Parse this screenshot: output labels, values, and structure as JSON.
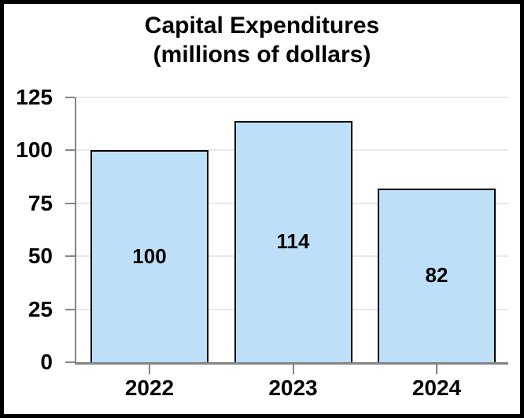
{
  "frame": {
    "background": "#ffffff",
    "border_color": "#000000"
  },
  "chart_data": {
    "type": "bar",
    "title": "Capital Expenditures (millions of dollars)",
    "title_lines": [
      "Capital Expenditures",
      "(millions of dollars)"
    ],
    "categories": [
      "2022",
      "2023",
      "2024"
    ],
    "values": [
      100,
      114,
      82
    ],
    "bar_value_labels": [
      "100",
      "114",
      "82"
    ],
    "xlabel": "",
    "ylabel": "",
    "ylim": [
      0,
      125
    ],
    "yticks": [
      0,
      25,
      50,
      75,
      100,
      125
    ],
    "ytick_labels": [
      "0",
      "25",
      "50",
      "75",
      "100",
      "125"
    ],
    "grid": "horizontal",
    "legend_position": "none",
    "colors": {
      "bar_fill": "#BEDFF8",
      "bar_border": "#000000",
      "axis": "#848484",
      "gridline": "#E8E8E8",
      "text": "#000000",
      "background": "#FFFFFF"
    }
  }
}
